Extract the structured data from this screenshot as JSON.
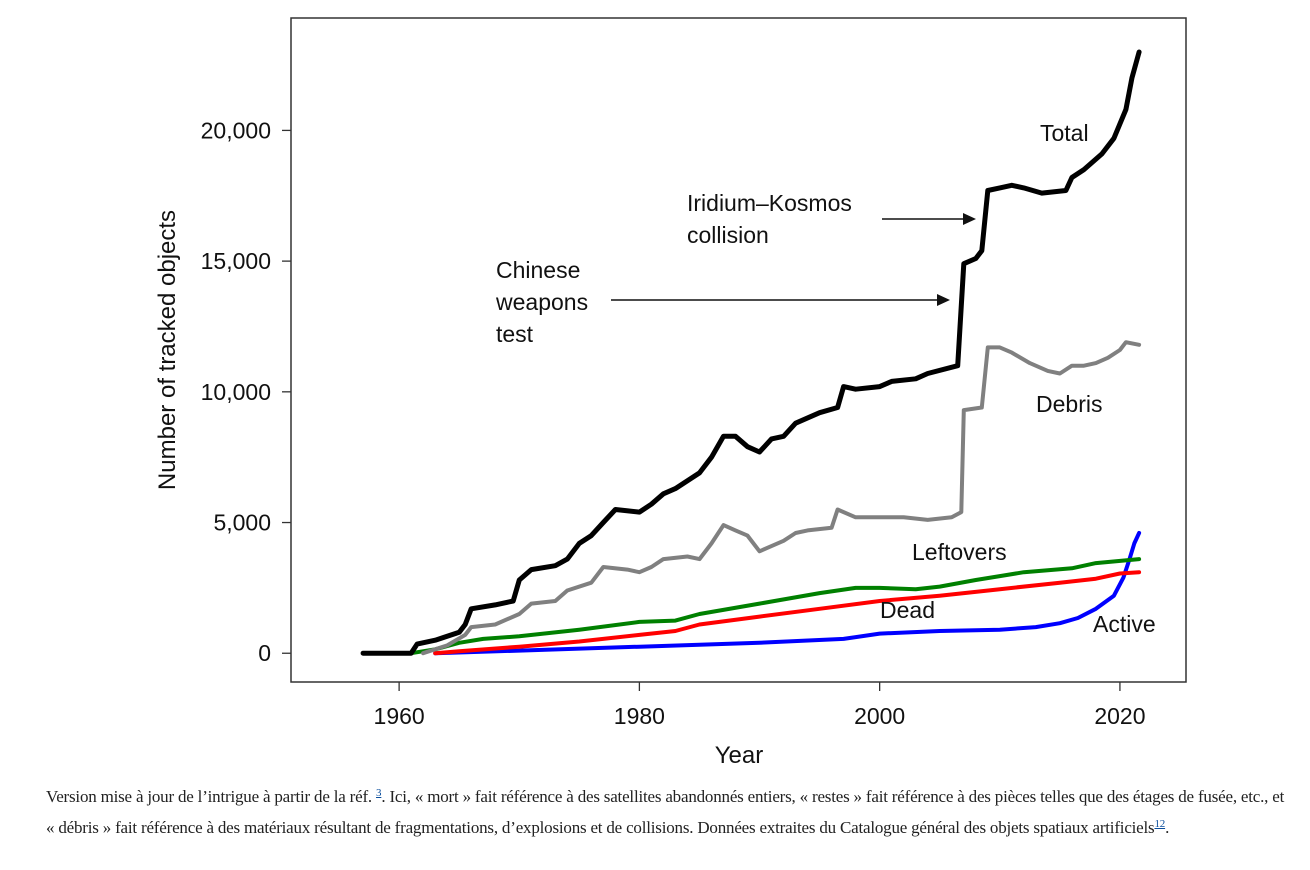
{
  "chart_data": {
    "type": "line",
    "xlabel": "Year",
    "ylabel": "Number of tracked objects",
    "xlim": [
      1951,
      2025.5
    ],
    "ylim": [
      -1100,
      24300
    ],
    "xticks": [
      1960,
      1980,
      2000,
      2020
    ],
    "xtick_labels": [
      "1960",
      "1980",
      "2000",
      "2020"
    ],
    "yticks": [
      0,
      5000,
      10000,
      15000,
      20000
    ],
    "ytick_labels": [
      "0",
      "5,000",
      "10,000",
      "15,000",
      "20,000"
    ],
    "grid": false,
    "legend": "none (inline series labels)",
    "series": [
      {
        "name": "Total",
        "color": "#000000",
        "x": [
          1957,
          1961,
          1961.5,
          1963,
          1965,
          1965.5,
          1966,
          1968,
          1969.5,
          1970,
          1971,
          1973,
          1974,
          1975,
          1976,
          1977,
          1978,
          1980,
          1981,
          1982,
          1983,
          1985,
          1986,
          1987,
          1988,
          1989,
          1990,
          1991,
          1992,
          1993,
          1995,
          1996.5,
          1997,
          1998,
          2000,
          2001,
          2003,
          2004,
          2006.5,
          2007,
          2008,
          2008.5,
          2009,
          2010,
          2011,
          2012,
          2013.5,
          2015.5,
          2016,
          2017,
          2018.5,
          2019.5,
          2020.5,
          2021,
          2021.6
        ],
        "y": [
          0,
          0,
          350,
          500,
          800,
          1100,
          1700,
          1850,
          2000,
          2800,
          3200,
          3350,
          3600,
          4200,
          4500,
          5000,
          5500,
          5400,
          5700,
          6100,
          6300,
          6900,
          7500,
          8300,
          8300,
          7900,
          7700,
          8200,
          8300,
          8800,
          9200,
          9400,
          10200,
          10100,
          10200,
          10400,
          10500,
          10700,
          11000,
          14900,
          15100,
          15400,
          17700,
          17800,
          17900,
          17800,
          17600,
          17700,
          18200,
          18500,
          19100,
          19700,
          20800,
          22000,
          23000
        ]
      },
      {
        "name": "Debris",
        "color": "#808080",
        "x": [
          1962,
          1964,
          1965.5,
          1966,
          1968,
          1970,
          1971,
          1973,
          1974,
          1976,
          1977,
          1979,
          1980,
          1981,
          1982,
          1984,
          1985,
          1986,
          1987,
          1988,
          1989,
          1990,
          1991,
          1992,
          1993,
          1994,
          1996,
          1996.5,
          1998,
          2000,
          2002,
          2004,
          2006,
          2006.8,
          2007,
          2008.5,
          2009,
          2010,
          2011,
          2012.5,
          2014,
          2015,
          2016,
          2017,
          2018,
          2019,
          2020,
          2020.5,
          2021.6
        ],
        "y": [
          0,
          300,
          700,
          1000,
          1100,
          1500,
          1900,
          2000,
          2400,
          2700,
          3300,
          3200,
          3100,
          3300,
          3600,
          3700,
          3600,
          4200,
          4900,
          4700,
          4500,
          3900,
          4100,
          4300,
          4600,
          4700,
          4800,
          5500,
          5200,
          5200,
          5200,
          5100,
          5200,
          5400,
          9300,
          9400,
          11700,
          11700,
          11500,
          11100,
          10800,
          10700,
          11000,
          11000,
          11100,
          11300,
          11600,
          11900,
          11800
        ]
      },
      {
        "name": "Leftovers",
        "color": "#008000",
        "x": [
          1961,
          1963,
          1965,
          1967,
          1970,
          1975,
          1980,
          1983,
          1985,
          1990,
          1995,
          1998,
          2000,
          2003,
          2005,
          2008,
          2010,
          2012,
          2016,
          2018,
          2021.6
        ],
        "y": [
          0,
          150,
          400,
          550,
          650,
          900,
          1200,
          1250,
          1500,
          1900,
          2300,
          2500,
          2500,
          2450,
          2550,
          2800,
          2950,
          3100,
          3250,
          3450,
          3600
        ]
      },
      {
        "name": "Dead",
        "color": "#ff0000",
        "x": [
          1963,
          1965,
          1970,
          1975,
          1980,
          1983,
          1985,
          1990,
          1995,
          2000,
          2005,
          2010,
          2015,
          2018,
          2020,
          2021.6
        ],
        "y": [
          0,
          80,
          250,
          450,
          700,
          850,
          1100,
          1400,
          1700,
          2000,
          2200,
          2450,
          2700,
          2850,
          3050,
          3100
        ]
      },
      {
        "name": "Active",
        "color": "#0000ff",
        "x": [
          1963,
          1970,
          1980,
          1990,
          1997,
          2000,
          2005,
          2010,
          2013,
          2015,
          2016.5,
          2018,
          2019.5,
          2020.3,
          2020.8,
          2021.2,
          2021.6
        ],
        "y": [
          0,
          100,
          250,
          400,
          550,
          750,
          850,
          900,
          1000,
          1150,
          1350,
          1700,
          2200,
          2900,
          3600,
          4200,
          4600
        ]
      }
    ],
    "series_labels": {
      "total": "Total",
      "debris": "Debris",
      "leftovers": "Leftovers",
      "dead": "Dead",
      "active": "Active"
    },
    "annotations": [
      {
        "lines": [
          "Iridium–Kosmos",
          "collision"
        ],
        "arrow_to_year": 2008.2
      },
      {
        "lines": [
          "Chinese",
          "weapons",
          "test"
        ],
        "arrow_to_year": 2006.3
      }
    ]
  },
  "caption": {
    "part1": "Version mise à jour de l’intrigue à partir de la réf. ",
    "ref1": "3",
    "part2": ". Ici, « mort » fait référence à des satellites abandonnés entiers, « restes » fait référence à des pièces telles que des étages de fusée, etc., et « débris » fait référence à des matériaux résultant de fragmentations, d’explosions et de collisions. Données extraites du Catalogue général des objets spatiaux artificiels",
    "ref2": "12",
    "part3": "."
  },
  "colors": {
    "axis": "#555555",
    "link": "#0a4d9c"
  }
}
